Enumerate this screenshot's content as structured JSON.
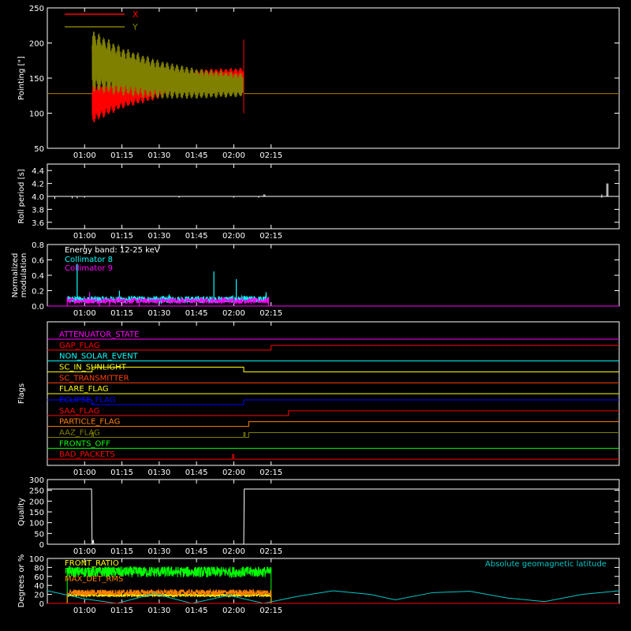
{
  "colors": {
    "background": "#000000",
    "axes": "#ffffff",
    "x_series": "#ff0000",
    "y_series": "#808000",
    "white": "#ffffff",
    "cyan": "#00ffff",
    "magenta": "#ff00ff",
    "green": "#00ff00",
    "orange": "#ff8000",
    "yellow": "#ffff00"
  },
  "time_axis": {
    "range_min": [
      45,
      275
    ],
    "ticks_min": [
      60,
      75,
      90,
      105,
      120,
      135
    ],
    "tick_labels": [
      "01:00",
      "01:15",
      "01:30",
      "01:45",
      "02:00",
      "02:15"
    ]
  },
  "chart_data": [
    {
      "id": "pointing",
      "type": "line",
      "title": "",
      "ylabel": "Pointing [\"]",
      "ylim": [
        50,
        250
      ],
      "yticks": [
        50,
        100,
        150,
        200,
        250
      ],
      "legend_position": "top-left",
      "series": [
        {
          "name": "X",
          "color": "#ff0000",
          "baseline": 128,
          "active_start": 63,
          "active_end": 124,
          "center": [
            [
              63,
              115
            ],
            [
              75,
              128
            ],
            [
              90,
              140
            ],
            [
              105,
              148
            ],
            [
              124,
              150
            ]
          ],
          "amplitude": [
            [
              63,
              30
            ],
            [
              75,
              22
            ],
            [
              90,
              20
            ],
            [
              105,
              15
            ],
            [
              124,
              15
            ]
          ]
        },
        {
          "name": "Y",
          "color": "#808000",
          "baseline": 128,
          "active_start": 63,
          "active_end": 124,
          "center": [
            [
              63,
              175
            ],
            [
              75,
              160
            ],
            [
              90,
              148
            ],
            [
              105,
              142
            ],
            [
              124,
              140
            ]
          ],
          "amplitude": [
            [
              63,
              45
            ],
            [
              75,
              35
            ],
            [
              90,
              28
            ],
            [
              105,
              22
            ],
            [
              124,
              17
            ]
          ]
        }
      ],
      "spikes": [
        {
          "x": 124,
          "y_top": 205,
          "color": "#ff0000"
        }
      ]
    },
    {
      "id": "roll_period",
      "type": "line",
      "title": "",
      "ylabel": "Roll period [s]",
      "ylim": [
        3.5,
        4.5
      ],
      "yticks": [
        3.6,
        3.8,
        4.0,
        4.2,
        4.4
      ],
      "ytick_labels": [
        "3.6",
        "3.8",
        "4.0",
        "4.2",
        "4.4"
      ],
      "series": [
        {
          "name": "",
          "color": "#ffffff",
          "baseline": 4.0,
          "dips": [
            [
              48,
              3.96
            ],
            [
              55,
              3.97
            ],
            [
              57,
              3.97
            ],
            [
              60,
              3.98
            ],
            [
              98,
              3.98
            ],
            [
              120,
              3.98
            ],
            [
              130,
              3.98
            ],
            [
              268,
              3.98
            ]
          ],
          "bumps": [
            [
              132,
              4.03
            ],
            [
              132.5,
              4.03
            ],
            [
              268,
              4.03
            ],
            [
              270,
              4.2
            ],
            [
              270.5,
              4.2
            ]
          ]
        }
      ]
    },
    {
      "id": "modulation",
      "type": "bar",
      "title": "",
      "ylabel": "Normalized modulation",
      "ylabel_lines": [
        "Normalized",
        "modulation"
      ],
      "ylim": [
        0,
        0.8
      ],
      "yticks": [
        0,
        0.2,
        0.4,
        0.6,
        0.8
      ],
      "ytick_labels": [
        "0.0",
        "0.2",
        "0.4",
        "0.6",
        "0.8"
      ],
      "annotation": "Energy band: 12-25 keV",
      "active_range": [
        53,
        134
      ],
      "series": [
        {
          "name": "Collimator 8",
          "color": "#00ffff",
          "base": 0.1,
          "spikes": [
            [
              57,
              0.55
            ],
            [
              74,
              0.2
            ],
            [
              94,
              0.15
            ],
            [
              112,
              0.45
            ],
            [
              121,
              0.35
            ],
            [
              133,
              0.18
            ],
            [
              103,
              0.12
            ]
          ]
        },
        {
          "name": "Collimator 9",
          "color": "#ff00ff",
          "base": 0.08,
          "spikes": [
            [
              62,
              0.18
            ],
            [
              66,
              -0.05
            ],
            [
              70,
              -0.05
            ],
            [
              74,
              0.12
            ],
            [
              82,
              -0.05
            ],
            [
              116,
              0.12
            ]
          ]
        }
      ]
    },
    {
      "id": "flags",
      "type": "line",
      "title": "",
      "ylabel": "Flags",
      "flags": [
        {
          "name": "ATTENUATOR_STATE",
          "color": "#ff00ff",
          "steps": []
        },
        {
          "name": "GAP_FLAG",
          "color": "#ff0000",
          "steps": [
            [
              135,
              1
            ]
          ]
        },
        {
          "name": "NON_SOLAR_EVENT",
          "color": "#00ffff",
          "steps": []
        },
        {
          "name": "SC_IN_SUNLIGHT",
          "color": "#ffff00",
          "steps": [
            [
              63,
              1
            ],
            [
              124,
              0
            ]
          ]
        },
        {
          "name": "SC_TRANSMITTER",
          "color": "#ff4000",
          "steps": []
        },
        {
          "name": "FLARE_FLAG",
          "color": "#ffff00",
          "steps": []
        },
        {
          "name": "ECLIPSE_FLAG",
          "color": "#0000ff",
          "steps": [
            [
              63,
              0
            ],
            [
              124,
              1
            ]
          ],
          "initial": 1
        },
        {
          "name": "SAA_FLAG",
          "color": "#ff0000",
          "steps": [
            [
              142,
              1
            ]
          ]
        },
        {
          "name": "PARTICLE_FLAG",
          "color": "#ff8000",
          "steps": [
            [
              126,
              1
            ]
          ]
        },
        {
          "name": "AAZ_FLAG",
          "color": "#808000",
          "steps": [
            [
              63,
              1
            ],
            [
              63.5,
              0
            ],
            [
              124,
              1
            ],
            [
              124.5,
              0
            ],
            [
              126,
              1
            ]
          ]
        },
        {
          "name": "FRONTS_OFF",
          "color": "#00ff00",
          "steps": []
        },
        {
          "name": "BAD_PACKETS",
          "color": "#ff0000",
          "steps": [
            [
              119.5,
              1
            ],
            [
              120,
              0
            ]
          ]
        }
      ]
    },
    {
      "id": "quality",
      "type": "line",
      "title": "",
      "ylabel": "Quality",
      "ylim": [
        0,
        300
      ],
      "yticks": [
        0,
        50,
        100,
        150,
        200,
        250,
        300
      ],
      "series": [
        {
          "name": "",
          "color": "#ffffff",
          "points": [
            [
              45,
              256
            ],
            [
              62.8,
              256
            ],
            [
              63,
              0
            ],
            [
              63.5,
              20
            ],
            [
              63.7,
              0
            ],
            [
              124,
              0
            ],
            [
              124.2,
              256
            ],
            [
              275,
              256
            ]
          ]
        }
      ]
    },
    {
      "id": "front_ratio",
      "type": "line",
      "title": "",
      "ylabel": "Degrees or %",
      "ylim": [
        0,
        100
      ],
      "yticks": [
        0,
        20,
        40,
        60,
        80,
        100
      ],
      "active_range": [
        53,
        135
      ],
      "annotation": "Absolute geomagnetic latitude",
      "series": [
        {
          "name": "FRONT_RATIO",
          "color": "#ffff00",
          "level": 18,
          "noise": 3
        },
        {
          "name": "FRONT_RATIO_1025",
          "color": "#00ff00",
          "level": 70,
          "noise": 12
        },
        {
          "name": "MAX_DET_RMS",
          "color": "#ff8000",
          "level": 24,
          "noise": 7
        },
        {
          "name": "Absolute geomagnetic latitude",
          "color": "#00c8c8",
          "points": [
            [
              45,
              28
            ],
            [
              60,
              10
            ],
            [
              73,
              0
            ],
            [
              88,
              22
            ],
            [
              103,
              0
            ],
            [
              118,
              18
            ],
            [
              132,
              0
            ],
            [
              145,
              15
            ],
            [
              160,
              28
            ],
            [
              175,
              20
            ],
            [
              185,
              8
            ],
            [
              200,
              24
            ],
            [
              215,
              27
            ],
            [
              230,
              12
            ],
            [
              245,
              4
            ],
            [
              260,
              20
            ],
            [
              275,
              28
            ]
          ]
        }
      ]
    }
  ]
}
